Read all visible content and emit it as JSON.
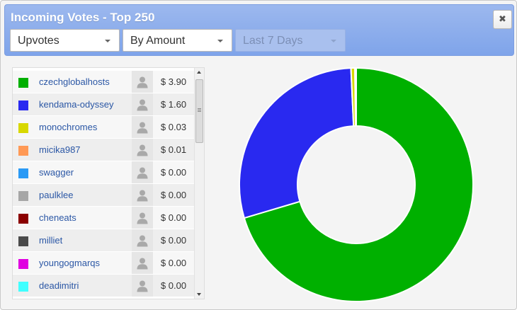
{
  "window": {
    "title": "Incoming Votes - Top 250",
    "close_label": "✖"
  },
  "filters": {
    "vote_type": "Upvotes",
    "sort": "By Amount",
    "period": "Last 7 Days"
  },
  "voters": [
    {
      "name": "czechglobalhosts",
      "amount": "$ 3.90",
      "color": "#00b000"
    },
    {
      "name": "kendama-odyssey",
      "amount": "$ 1.60",
      "color": "#2929f0"
    },
    {
      "name": "monochromes",
      "amount": "$ 0.03",
      "color": "#d8d800"
    },
    {
      "name": "micika987",
      "amount": "$ 0.01",
      "color": "#ff9955"
    },
    {
      "name": "swagger",
      "amount": "$ 0.00",
      "color": "#2b9af5"
    },
    {
      "name": "paulklee",
      "amount": "$ 0.00",
      "color": "#a6a6a6"
    },
    {
      "name": "cheneats",
      "amount": "$ 0.00",
      "color": "#8b0000"
    },
    {
      "name": "milliet",
      "amount": "$ 0.00",
      "color": "#4a4a4a"
    },
    {
      "name": "youngogmarqs",
      "amount": "$ 0.00",
      "color": "#e000e0"
    },
    {
      "name": "deadimitri",
      "amount": "$ 0.00",
      "color": "#40ffff"
    }
  ],
  "chart_data": {
    "type": "pie",
    "donut": true,
    "categories": [
      "czechglobalhosts",
      "kendama-odyssey",
      "monochromes",
      "micika987",
      "swagger",
      "paulklee",
      "cheneats",
      "milliet",
      "youngogmarqs",
      "deadimitri"
    ],
    "values": [
      3.9,
      1.6,
      0.03,
      0.01,
      0.0,
      0.0,
      0.0,
      0.0,
      0.0,
      0.0
    ],
    "colors": [
      "#00b000",
      "#2929f0",
      "#d8d800",
      "#ff9955",
      "#2b9af5",
      "#a6a6a6",
      "#8b0000",
      "#4a4a4a",
      "#e000e0",
      "#40ffff"
    ],
    "title": "",
    "legend": "left"
  }
}
